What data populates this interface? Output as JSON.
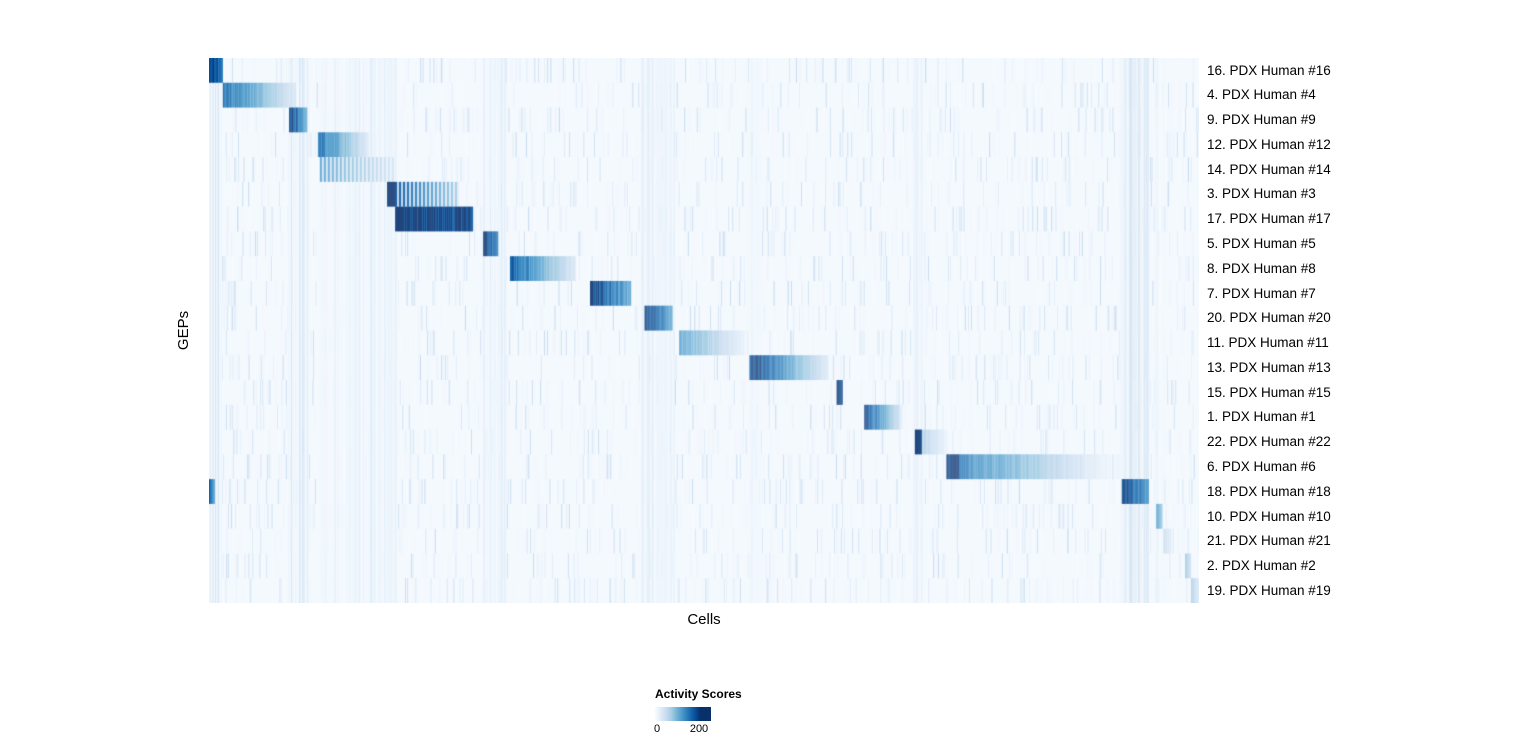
{
  "chart_data": {
    "type": "heatmap",
    "title": "",
    "xlabel": "Cells",
    "ylabel": "GEPs",
    "value_range": [
      0,
      200
    ],
    "legend": {
      "title": "Activity Scores",
      "tick_labels": [
        "0",
        "200"
      ],
      "tick_values": [
        0,
        200
      ]
    },
    "colors": {
      "colormap": [
        "#f7fbff",
        "#deebf7",
        "#c6dbef",
        "#9ecae1",
        "#6baed6",
        "#4292c6",
        "#2171b5",
        "#08519c",
        "#08306b"
      ],
      "background_value": 3
    },
    "rows": [
      {
        "label": "16. PDX Human #16",
        "segments": [
          {
            "x0": 0.0,
            "x1": 0.014,
            "v0": 200,
            "v1": 130
          }
        ]
      },
      {
        "label": "4. PDX Human #4",
        "segments": [
          {
            "x0": 0.014,
            "x1": 0.087,
            "v0": 150,
            "v1": 30
          }
        ]
      },
      {
        "label": "9. PDX Human #9",
        "segments": [
          {
            "x0": 0.081,
            "x1": 0.099,
            "v0": 200,
            "v1": 110
          }
        ]
      },
      {
        "label": "12. PDX Human #12",
        "segments": [
          {
            "x0": 0.11,
            "x1": 0.161,
            "v0": 150,
            "v1": 25
          }
        ]
      },
      {
        "label": "14. PDX Human #14",
        "segments": [
          {
            "x0": 0.112,
            "x1": 0.186,
            "v0": 80,
            "v1": 25,
            "striped": true
          }
        ]
      },
      {
        "label": "3. PDX Human #3",
        "segments": [
          {
            "x0": 0.18,
            "x1": 0.188,
            "v0": 200,
            "v1": 200
          },
          {
            "x0": 0.188,
            "x1": 0.252,
            "v0": 130,
            "v1": 50,
            "striped": true
          }
        ]
      },
      {
        "label": "17. PDX Human #17",
        "segments": [
          {
            "x0": 0.188,
            "x1": 0.266,
            "v0": 200,
            "v1": 190
          }
        ]
      },
      {
        "label": "5. PDX Human #5",
        "segments": [
          {
            "x0": 0.277,
            "x1": 0.292,
            "v0": 200,
            "v1": 140
          }
        ]
      },
      {
        "label": "8. PDX Human #8",
        "segments": [
          {
            "x0": 0.304,
            "x1": 0.37,
            "v0": 160,
            "v1": 25
          }
        ]
      },
      {
        "label": "7. PDX Human #7",
        "segments": [
          {
            "x0": 0.385,
            "x1": 0.426,
            "v0": 200,
            "v1": 100
          }
        ]
      },
      {
        "label": "20. PDX Human #20",
        "segments": [
          {
            "x0": 0.44,
            "x1": 0.468,
            "v0": 200,
            "v1": 110
          }
        ]
      },
      {
        "label": "11. PDX Human #11",
        "segments": [
          {
            "x0": 0.475,
            "x1": 0.541,
            "v0": 110,
            "v1": 15
          }
        ]
      },
      {
        "label": "13. PDX Human #13",
        "segments": [
          {
            "x0": 0.546,
            "x1": 0.625,
            "v0": 200,
            "v1": 30
          }
        ]
      },
      {
        "label": "15. PDX Human #15",
        "segments": [
          {
            "x0": 0.634,
            "x1": 0.64,
            "v0": 200,
            "v1": 180
          }
        ]
      },
      {
        "label": "1. PDX Human #1",
        "segments": [
          {
            "x0": 0.662,
            "x1": 0.698,
            "v0": 190,
            "v1": 45
          }
        ]
      },
      {
        "label": "22. PDX Human #22",
        "segments": [
          {
            "x0": 0.713,
            "x1": 0.72,
            "v0": 200,
            "v1": 190
          },
          {
            "x0": 0.72,
            "x1": 0.744,
            "v0": 60,
            "v1": 15
          }
        ]
      },
      {
        "label": "6. PDX Human #6",
        "segments": [
          {
            "x0": 0.745,
            "x1": 0.758,
            "v0": 200,
            "v1": 200
          },
          {
            "x0": 0.758,
            "x1": 0.91,
            "v0": 140,
            "v1": 8
          }
        ]
      },
      {
        "label": "18. PDX Human #18",
        "segments": [
          {
            "x0": 0.0,
            "x1": 0.006,
            "v0": 160,
            "v1": 100
          },
          {
            "x0": 0.922,
            "x1": 0.949,
            "v0": 200,
            "v1": 120
          }
        ]
      },
      {
        "label": "10. PDX Human #10",
        "segments": [
          {
            "x0": 0.957,
            "x1": 0.963,
            "v0": 120,
            "v1": 80
          }
        ]
      },
      {
        "label": "21. PDX Human #21",
        "segments": [
          {
            "x0": 0.964,
            "x1": 0.972,
            "v0": 45,
            "v1": 25
          }
        ]
      },
      {
        "label": "2. PDX Human #2",
        "segments": [
          {
            "x0": 0.986,
            "x1": 0.992,
            "v0": 70,
            "v1": 40
          }
        ]
      },
      {
        "label": "19. PDX Human #19",
        "segments": [
          {
            "x0": 0.992,
            "x1": 1.0,
            "v0": 60,
            "v1": 25
          }
        ]
      }
    ],
    "noise_bands": [
      {
        "x0": 0.0,
        "x1": 0.013,
        "v": 14
      },
      {
        "x0": 0.08,
        "x1": 0.101,
        "v": 16
      },
      {
        "x0": 0.11,
        "x1": 0.19,
        "v": 8
      },
      {
        "x0": 0.276,
        "x1": 0.3,
        "v": 10
      },
      {
        "x0": 0.436,
        "x1": 0.47,
        "v": 10
      },
      {
        "x0": 0.545,
        "x1": 0.558,
        "v": 6
      },
      {
        "x0": 0.712,
        "x1": 0.722,
        "v": 10
      },
      {
        "x0": 0.92,
        "x1": 0.95,
        "v": 18
      },
      {
        "x0": 0.955,
        "x1": 0.965,
        "v": 6
      }
    ]
  }
}
